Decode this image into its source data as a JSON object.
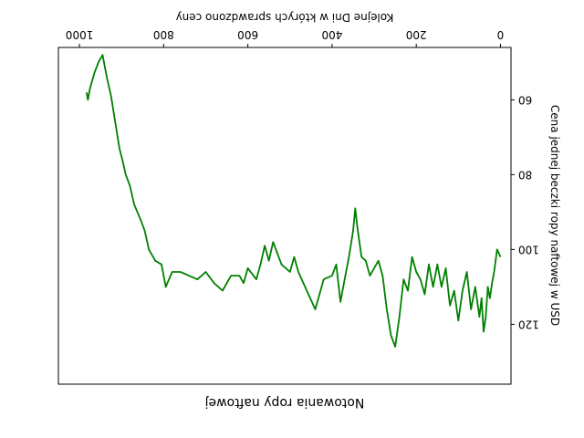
{
  "chart_data": {
    "type": "line",
    "title": "Notowania ropy naftowej",
    "xlabel": "Kolejne Dni w których sprawdzono ceny",
    "ylabel": "Cena jednej beczki ropy naftowej w USD",
    "orientation": "rotated-180",
    "xlim": [
      -25,
      1050
    ],
    "ylim": [
      46,
      136
    ],
    "xticks": [
      0,
      200,
      400,
      600,
      800,
      1000
    ],
    "yticks": [
      60,
      80,
      100,
      120
    ],
    "grid": false,
    "series": [
      {
        "color": "#008000",
        "points": [
          [
            0,
            102
          ],
          [
            8,
            100
          ],
          [
            15,
            106
          ],
          [
            20,
            109
          ],
          [
            25,
            113
          ],
          [
            30,
            110
          ],
          [
            35,
            118
          ],
          [
            40,
            122
          ],
          [
            45,
            113
          ],
          [
            50,
            118
          ],
          [
            60,
            110
          ],
          [
            70,
            116
          ],
          [
            80,
            106
          ],
          [
            90,
            111
          ],
          [
            100,
            119
          ],
          [
            110,
            111
          ],
          [
            120,
            115
          ],
          [
            130,
            105
          ],
          [
            140,
            110
          ],
          [
            150,
            104
          ],
          [
            160,
            110
          ],
          [
            170,
            104
          ],
          [
            180,
            112
          ],
          [
            190,
            108
          ],
          [
            200,
            106
          ],
          [
            210,
            102
          ],
          [
            220,
            111
          ],
          [
            230,
            108
          ],
          [
            240,
            118
          ],
          [
            250,
            126
          ],
          [
            260,
            123
          ],
          [
            270,
            116
          ],
          [
            280,
            107
          ],
          [
            290,
            103
          ],
          [
            300,
            105
          ],
          [
            310,
            107
          ],
          [
            320,
            103
          ],
          [
            330,
            102
          ],
          [
            340,
            94
          ],
          [
            345,
            89
          ],
          [
            350,
            95
          ],
          [
            360,
            102
          ],
          [
            370,
            108
          ],
          [
            380,
            114
          ],
          [
            390,
            104
          ],
          [
            400,
            107
          ],
          [
            420,
            108
          ],
          [
            440,
            116
          ],
          [
            460,
            111
          ],
          [
            480,
            106
          ],
          [
            490,
            102
          ],
          [
            500,
            106
          ],
          [
            520,
            104
          ],
          [
            540,
            98
          ],
          [
            550,
            103
          ],
          [
            560,
            99
          ],
          [
            570,
            104
          ],
          [
            580,
            108
          ],
          [
            600,
            105
          ],
          [
            610,
            109
          ],
          [
            620,
            107
          ],
          [
            640,
            107
          ],
          [
            660,
            111
          ],
          [
            680,
            109
          ],
          [
            700,
            106
          ],
          [
            720,
            108
          ],
          [
            740,
            107
          ],
          [
            760,
            106
          ],
          [
            780,
            106
          ],
          [
            795,
            110
          ],
          [
            805,
            104
          ],
          [
            820,
            103
          ],
          [
            835,
            100
          ],
          [
            845,
            95
          ],
          [
            855,
            92
          ],
          [
            870,
            88
          ],
          [
            880,
            83
          ],
          [
            890,
            80
          ],
          [
            898,
            76
          ],
          [
            905,
            73
          ],
          [
            915,
            66
          ],
          [
            925,
            59
          ],
          [
            935,
            54
          ],
          [
            945,
            48
          ],
          [
            955,
            50
          ],
          [
            965,
            53
          ],
          [
            970,
            55
          ],
          [
            975,
            57
          ],
          [
            980,
            60
          ],
          [
            983,
            58
          ]
        ]
      }
    ]
  }
}
